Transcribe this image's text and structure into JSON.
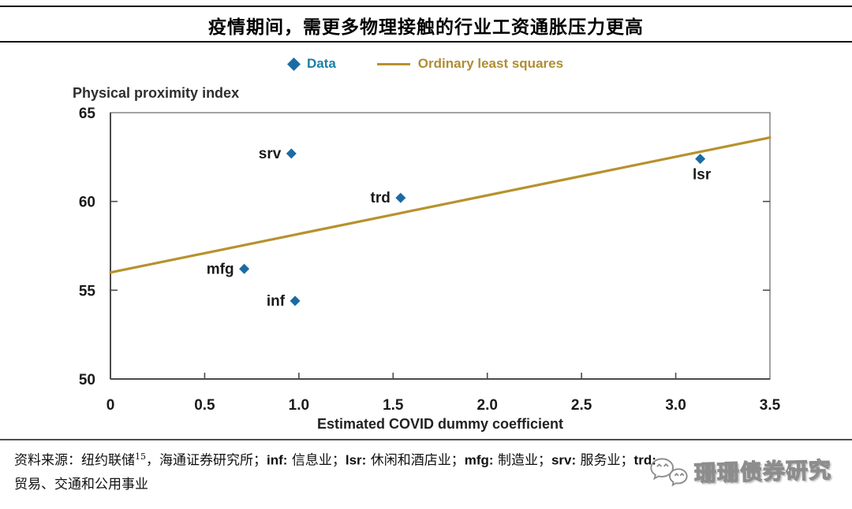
{
  "header": {
    "title": "疫情期间，需更多物理接触的行业工资通胀压力更高"
  },
  "legend": {
    "data_label": "Data",
    "ols_label": "Ordinary least squares"
  },
  "colors": {
    "data_point": "#1b6ba3",
    "data_legend_text": "#1b81a5",
    "ols_line": "#b6922e",
    "axis_box": "#7a7a7a",
    "axis_main": "#4b4b4b",
    "text": "#1a1a1a",
    "watermark_gray": "#8d8d8d"
  },
  "chart_data": {
    "type": "scatter",
    "title": "疫情期间，需更多物理接触的行业工资通胀压力更高",
    "xlabel": "Estimated COVID dummy coefficient",
    "ylabel": "Physical proximity index",
    "xlim": [
      0,
      3.5
    ],
    "ylim": [
      50,
      65
    ],
    "x_ticks": [
      0,
      0.5,
      1.0,
      1.5,
      2.0,
      2.5,
      3.0,
      3.5
    ],
    "x_tick_labels": [
      "0",
      "0.5",
      "1.0",
      "1.5",
      "2.0",
      "2.5",
      "3.0",
      "3.5"
    ],
    "y_ticks": [
      50,
      55,
      60,
      65
    ],
    "y_tick_labels": [
      "50",
      "55",
      "60",
      "65"
    ],
    "grid": false,
    "legend_position": "top-center",
    "series": [
      {
        "name": "Data",
        "type": "scatter",
        "marker": "diamond",
        "color": "#1b6ba3",
        "points": [
          {
            "label": "srv",
            "x": 0.96,
            "y": 62.7,
            "label_position": "left"
          },
          {
            "label": "trd",
            "x": 1.54,
            "y": 60.2,
            "label_position": "left"
          },
          {
            "label": "mfg",
            "x": 0.71,
            "y": 56.2,
            "label_position": "left"
          },
          {
            "label": "inf",
            "x": 0.98,
            "y": 54.4,
            "label_position": "left"
          },
          {
            "label": "lsr",
            "x": 3.13,
            "y": 62.4,
            "label_position": "below"
          }
        ]
      },
      {
        "name": "Ordinary least squares",
        "type": "line",
        "color": "#b6922e",
        "x": [
          0,
          3.5
        ],
        "y": [
          56.0,
          63.6
        ]
      }
    ]
  },
  "source": {
    "segments_line1": [
      {
        "t": "资料来源：纽约联储",
        "b": 0
      },
      {
        "t": "15",
        "b": 0,
        "sup": 1
      },
      {
        "t": "，海通证券研究所；",
        "b": 0
      },
      {
        "t": "inf:",
        "b": 1
      },
      {
        "t": " 信息业；",
        "b": 0
      },
      {
        "t": "lsr:",
        "b": 1
      },
      {
        "t": " 休闲和酒店业；",
        "b": 0
      },
      {
        "t": "mfg:",
        "b": 1
      },
      {
        "t": " 制造业；",
        "b": 0
      },
      {
        "t": "srv:",
        "b": 1
      },
      {
        "t": " 服务业；",
        "b": 0
      },
      {
        "t": "trd:",
        "b": 1
      }
    ],
    "line2": "贸易、交通和公用事业"
  },
  "watermark": {
    "text": "珊珊债券研究",
    "icon": "wechat-chat-bubbles-icon"
  }
}
